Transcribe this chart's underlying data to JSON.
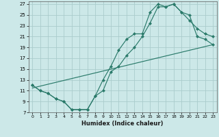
{
  "xlabel": "Humidex (Indice chaleur)",
  "bg_color": "#cce8e8",
  "grid_color": "#b0d8d8",
  "line_color": "#2a7a6a",
  "marker_color": "#2a7a6a",
  "xlim": [
    -0.5,
    23.5
  ],
  "ylim": [
    7,
    27.5
  ],
  "xticks": [
    0,
    1,
    2,
    3,
    4,
    5,
    6,
    7,
    8,
    9,
    10,
    11,
    12,
    13,
    14,
    15,
    16,
    17,
    18,
    19,
    20,
    21,
    22,
    23
  ],
  "yticks": [
    7,
    9,
    11,
    13,
    15,
    17,
    19,
    21,
    23,
    25,
    27
  ],
  "curve1_x": [
    0,
    1,
    2,
    3,
    4,
    5,
    6,
    7,
    8,
    9,
    10,
    11,
    12,
    13,
    14,
    15,
    16,
    17,
    18,
    19,
    20,
    21,
    22,
    23
  ],
  "curve1_y": [
    12,
    11,
    10.5,
    9.5,
    9,
    7.5,
    7.5,
    7.5,
    10,
    13,
    15.5,
    18.5,
    20.5,
    21.5,
    21.5,
    25.5,
    27,
    26.5,
    27,
    25.5,
    25,
    21,
    20.5,
    19.5
  ],
  "curve2_x": [
    0,
    1,
    2,
    3,
    4,
    5,
    6,
    7,
    8,
    9,
    10,
    11,
    12,
    13,
    14,
    15,
    16,
    17,
    18,
    19,
    20,
    21,
    22,
    23
  ],
  "curve2_y": [
    12,
    11,
    10.5,
    9.5,
    9,
    7.5,
    7.5,
    7.5,
    10,
    11,
    14.5,
    15.5,
    17.5,
    19,
    21,
    23.5,
    26.5,
    26.5,
    27,
    25.5,
    24,
    22.5,
    21.5,
    21
  ],
  "curve3_x": [
    0,
    23
  ],
  "curve3_y": [
    11.5,
    19.5
  ]
}
